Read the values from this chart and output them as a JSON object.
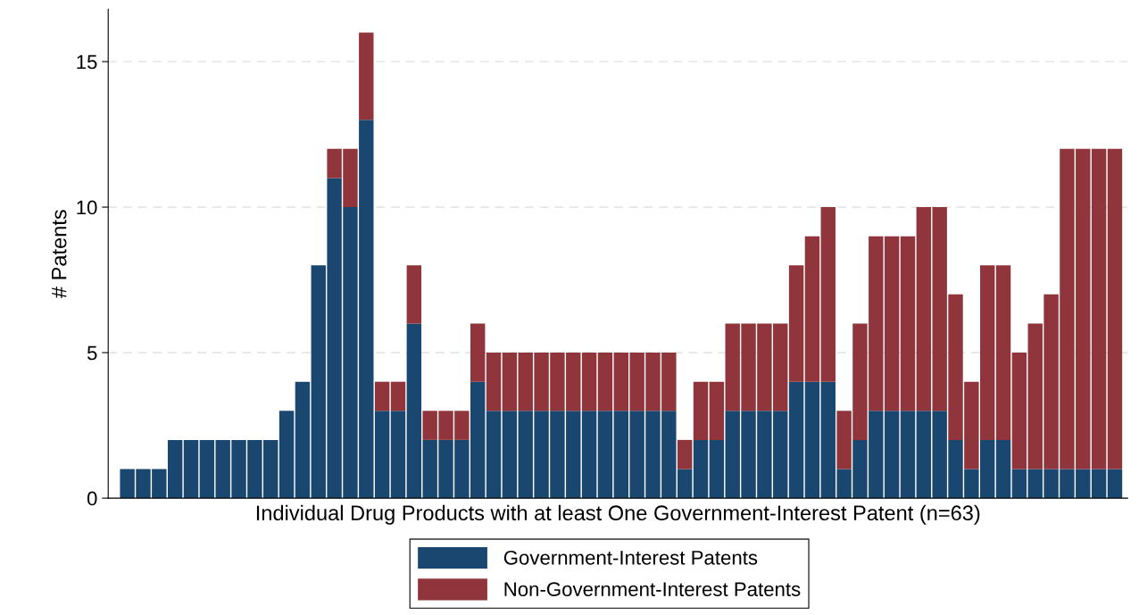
{
  "chart_data": {
    "type": "bar",
    "stacked": true,
    "xlabel": "Individual Drug Products with at least One Government-Interest Patent (n=63)",
    "ylabel": "# Patents",
    "categories": [
      null,
      null,
      null,
      null,
      null,
      null,
      null,
      null,
      null,
      null,
      null,
      null,
      null,
      null,
      null,
      null,
      null,
      null,
      null,
      null,
      null,
      null,
      null,
      null,
      null,
      null,
      null,
      null,
      null,
      null,
      null,
      null,
      null,
      null,
      null,
      null,
      null,
      null,
      null,
      null,
      null,
      null,
      null,
      null,
      null,
      null,
      null,
      null,
      null,
      null,
      null,
      null,
      null,
      null,
      null,
      null,
      null,
      null,
      null,
      null,
      null,
      null,
      null
    ],
    "series": [
      {
        "name": "Government-Interest Patents",
        "color": "#1a476f",
        "values": [
          1,
          1,
          1,
          2,
          2,
          2,
          2,
          2,
          2,
          2,
          3,
          4,
          8,
          11,
          10,
          13,
          3,
          3,
          6,
          2,
          2,
          2,
          4,
          3,
          3,
          3,
          3,
          3,
          3,
          3,
          3,
          3,
          3,
          3,
          3,
          1,
          2,
          2,
          3,
          3,
          3,
          3,
          4,
          4,
          4,
          1,
          2,
          3,
          3,
          3,
          3,
          3,
          2,
          1,
          2,
          2,
          1,
          1,
          1,
          1,
          1,
          1,
          1
        ]
      },
      {
        "name": "Non-Government-Interest Patents",
        "color": "#90353b",
        "values": [
          0,
          0,
          0,
          0,
          0,
          0,
          0,
          0,
          0,
          0,
          0,
          0,
          0,
          1,
          2,
          3,
          1,
          1,
          2,
          1,
          1,
          1,
          2,
          2,
          2,
          2,
          2,
          2,
          2,
          2,
          2,
          2,
          2,
          2,
          2,
          1,
          2,
          2,
          3,
          3,
          3,
          3,
          4,
          5,
          6,
          2,
          4,
          6,
          6,
          6,
          7,
          7,
          5,
          3,
          6,
          6,
          4,
          5,
          6,
          11,
          11,
          11,
          11
        ]
      }
    ],
    "ylim": [
      0,
      16.8
    ],
    "yticks": [
      0,
      5,
      10,
      15
    ],
    "grid": "y",
    "legend": "bottom"
  }
}
